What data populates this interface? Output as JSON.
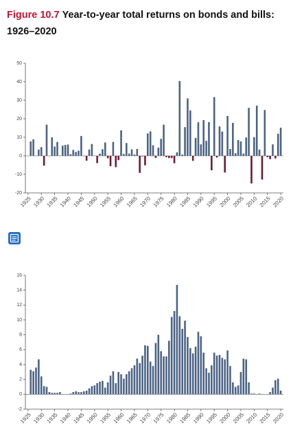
{
  "heading": {
    "label": "Figure 10.7",
    "text": "Year-to-year total returns on bonds and bills:",
    "years": "1926–2020"
  },
  "chart_data": [
    {
      "type": "bar",
      "color": "#4b6384",
      "negative_color": "#6e1b35",
      "x": [
        1926,
        1927,
        1928,
        1929,
        1930,
        1931,
        1932,
        1933,
        1934,
        1935,
        1936,
        1937,
        1938,
        1939,
        1940,
        1941,
        1942,
        1943,
        1944,
        1945,
        1946,
        1947,
        1948,
        1949,
        1950,
        1951,
        1952,
        1953,
        1954,
        1955,
        1956,
        1957,
        1958,
        1959,
        1960,
        1961,
        1962,
        1963,
        1964,
        1965,
        1966,
        1967,
        1968,
        1969,
        1970,
        1971,
        1972,
        1973,
        1974,
        1975,
        1976,
        1977,
        1978,
        1979,
        1980,
        1981,
        1982,
        1983,
        1984,
        1985,
        1986,
        1987,
        1988,
        1989,
        1990,
        1991,
        1992,
        1993,
        1994,
        1995,
        1996,
        1997,
        1998,
        1999,
        2000,
        2001,
        2002,
        2003,
        2004,
        2005,
        2006,
        2007,
        2008,
        2009,
        2010,
        2011,
        2012,
        2013,
        2014,
        2015,
        2016,
        2017,
        2018,
        2019,
        2020
      ],
      "values": [
        7.8,
        8.9,
        0.1,
        3.4,
        4.7,
        -5.3,
        16.8,
        -0.1,
        10.0,
        5.0,
        7.5,
        0.2,
        5.5,
        5.9,
        6.1,
        0.9,
        3.2,
        2.1,
        2.8,
        10.7,
        -0.1,
        -2.6,
        3.4,
        6.4,
        0.1,
        -3.9,
        1.2,
        3.6,
        7.2,
        -1.3,
        -5.6,
        7.5,
        -6.1,
        -2.3,
        13.8,
        1.0,
        6.9,
        1.2,
        3.5,
        0.7,
        3.7,
        -9.2,
        -0.3,
        -5.1,
        12.1,
        13.2,
        5.7,
        -1.1,
        4.4,
        9.2,
        16.8,
        -0.7,
        -1.2,
        -1.2,
        -4.0,
        1.9,
        40.4,
        0.7,
        15.5,
        31.0,
        24.5,
        -2.7,
        9.7,
        18.1,
        6.2,
        19.3,
        8.1,
        18.2,
        -7.8,
        31.7,
        -0.9,
        15.9,
        13.1,
        -9.0,
        21.5,
        3.7,
        17.8,
        1.4,
        8.5,
        7.8,
        1.2,
        9.9,
        25.9,
        -14.9,
        10.1,
        27.1,
        3.4,
        -12.8,
        24.7,
        -0.7,
        -1.8,
        6.2,
        -1.4,
        11.9,
        15.2
      ],
      "xlim": [
        1924,
        2021
      ],
      "xticks": [
        1925,
        1930,
        1935,
        1940,
        1945,
        1950,
        1955,
        1960,
        1965,
        1970,
        1975,
        1980,
        1985,
        1990,
        1995,
        2000,
        2005,
        2010,
        2015,
        2020
      ],
      "ylim": [
        -20,
        50
      ],
      "yticks": [
        -20,
        -10,
        0,
        10,
        20,
        30,
        40,
        50
      ]
    },
    {
      "type": "bar",
      "color": "#4b6384",
      "x": [
        1926,
        1927,
        1928,
        1929,
        1930,
        1931,
        1932,
        1933,
        1934,
        1935,
        1936,
        1937,
        1938,
        1939,
        1940,
        1941,
        1942,
        1943,
        1944,
        1945,
        1946,
        1947,
        1948,
        1949,
        1950,
        1951,
        1952,
        1953,
        1954,
        1955,
        1956,
        1957,
        1958,
        1959,
        1960,
        1961,
        1962,
        1963,
        1964,
        1965,
        1966,
        1967,
        1968,
        1969,
        1970,
        1971,
        1972,
        1973,
        1974,
        1975,
        1976,
        1977,
        1978,
        1979,
        1980,
        1981,
        1982,
        1983,
        1984,
        1985,
        1986,
        1987,
        1988,
        1989,
        1990,
        1991,
        1992,
        1993,
        1994,
        1995,
        1996,
        1997,
        1998,
        1999,
        2000,
        2001,
        2002,
        2003,
        2004,
        2005,
        2006,
        2007,
        2008,
        2009,
        2010,
        2011,
        2012,
        2013,
        2014,
        2015,
        2016,
        2017,
        2018,
        2019,
        2020
      ],
      "values": [
        3.3,
        3.1,
        3.6,
        4.7,
        2.4,
        1.1,
        1.0,
        0.3,
        0.2,
        0.2,
        0.2,
        0.3,
        0.0,
        0.0,
        0.0,
        0.1,
        0.3,
        0.4,
        0.3,
        0.3,
        0.4,
        0.5,
        0.8,
        1.1,
        1.2,
        1.5,
        1.7,
        1.8,
        0.9,
        1.6,
        2.5,
        3.1,
        1.5,
        3.0,
        2.7,
        2.1,
        2.7,
        3.1,
        3.5,
        3.9,
        4.8,
        4.2,
        5.2,
        6.6,
        6.5,
        4.4,
        3.8,
        6.9,
        8.0,
        5.8,
        5.1,
        5.1,
        7.2,
        10.4,
        11.2,
        14.7,
        10.5,
        8.8,
        9.9,
        7.7,
        6.2,
        5.5,
        6.4,
        8.4,
        7.8,
        5.6,
        3.5,
        2.9,
        3.9,
        5.6,
        5.2,
        5.3,
        4.9,
        4.7,
        5.9,
        3.8,
        1.6,
        1.0,
        1.2,
        3.0,
        4.8,
        4.7,
        1.6,
        0.1,
        0.1,
        0.0,
        0.1,
        0.0,
        0.0,
        0.0,
        0.3,
        0.9,
        1.9,
        2.1,
        0.5
      ],
      "xlim": [
        1924,
        2021
      ],
      "xticks": [
        1925,
        1930,
        1935,
        1940,
        1945,
        1950,
        1955,
        1960,
        1965,
        1970,
        1975,
        1980,
        1985,
        1990,
        1995,
        2000,
        2005,
        2010,
        2015,
        2020
      ],
      "ylim": [
        -2,
        16
      ],
      "yticks": [
        -2,
        0,
        2,
        4,
        6,
        8,
        10,
        12,
        14,
        16
      ]
    }
  ]
}
